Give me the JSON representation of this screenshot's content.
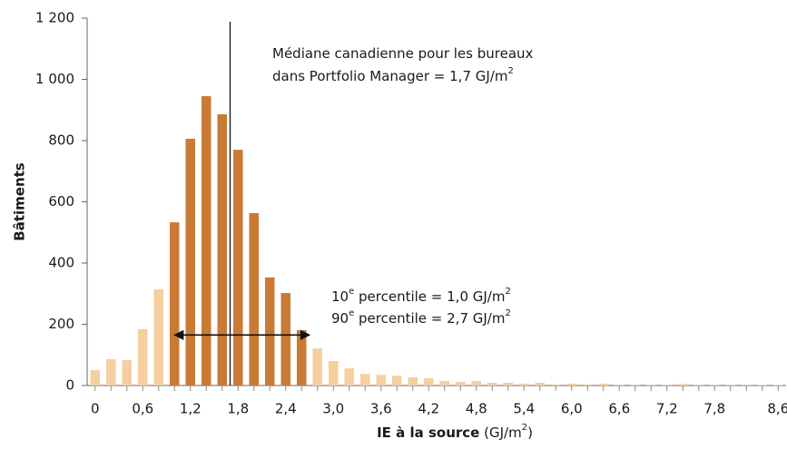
{
  "chart_data": {
    "type": "bar",
    "y_label": "Bâtiments",
    "x_label": [
      {
        "t": "IE à la source",
        "bold": true
      },
      {
        "t": " (GJ/m"
      },
      {
        "t": "2",
        "sup": true
      },
      {
        "t": ")"
      }
    ],
    "x": [
      0,
      0.2,
      0.4,
      0.6,
      0.8,
      1.0,
      1.2,
      1.4,
      1.6,
      1.8,
      2.0,
      2.2,
      2.4,
      2.6,
      2.8,
      3.0,
      3.2,
      3.4,
      3.6,
      3.8,
      4.0,
      4.2,
      4.4,
      4.6,
      4.8,
      5.0,
      5.2,
      5.4,
      5.6,
      5.8,
      6.0,
      6.2,
      6.4,
      6.6,
      6.8,
      7.0,
      7.2,
      7.4,
      7.6,
      7.8,
      8.0,
      8.2,
      8.4,
      8.6
    ],
    "values": [
      50,
      86,
      83,
      184,
      314,
      533,
      806,
      945,
      886,
      770,
      563,
      353,
      302,
      181,
      121,
      80,
      56,
      38,
      35,
      32,
      27,
      24,
      15,
      12,
      15,
      9,
      9,
      6,
      9,
      4,
      6,
      4,
      6,
      3,
      3,
      3,
      3,
      5,
      3,
      3,
      3,
      3,
      2,
      2
    ],
    "color": "#f5cfa0",
    "highlight_color": "#c97a35",
    "highlight_range": [
      1.0,
      2.6
    ],
    "xlim": [
      -0.1,
      8.7
    ],
    "xticks": [
      {
        "value": 0,
        "label": "0"
      },
      {
        "value": 0.6,
        "label": "0,6"
      },
      {
        "value": 1.2,
        "label": "1,2"
      },
      {
        "value": 1.8,
        "label": "1,8"
      },
      {
        "value": 2.4,
        "label": "2,4"
      },
      {
        "value": 3.0,
        "label": "3,0"
      },
      {
        "value": 3.6,
        "label": "3,6"
      },
      {
        "value": 4.2,
        "label": "4,2"
      },
      {
        "value": 4.8,
        "label": "4,8"
      },
      {
        "value": 5.4,
        "label": "5,4"
      },
      {
        "value": 6.0,
        "label": "6,0"
      },
      {
        "value": 6.6,
        "label": "6,6"
      },
      {
        "value": 7.2,
        "label": "7,2"
      },
      {
        "value": 7.8,
        "label": "7,8"
      },
      {
        "value": 8.6,
        "label": "8,6"
      }
    ],
    "ylim": [
      0,
      1200
    ],
    "yticks": [
      0,
      200,
      400,
      600,
      800,
      {
        "value": 1000,
        "label": "1 000"
      },
      {
        "value": 1200,
        "label": "1 200"
      }
    ],
    "median": 1.7,
    "median_label": [
      [
        {
          "t": "Médiane canadienne pour les bureaux"
        }
      ],
      [
        {
          "t": "dans Portfolio Manager = 1,7 GJ/m"
        },
        {
          "t": "2",
          "sup": true
        }
      ]
    ],
    "percentile_range": [
      1.0,
      2.7
    ],
    "arrow_y": 165,
    "percentile_label": [
      [
        {
          "t": "10"
        },
        {
          "t": "e",
          "sup": true
        },
        {
          "t": " percentile = 1,0 GJ/m"
        },
        {
          "t": "2",
          "sup": true
        }
      ],
      [
        {
          "t": "90"
        },
        {
          "t": "e",
          "sup": true
        },
        {
          "t": " percentile = 2,7 GJ/m"
        },
        {
          "t": "2",
          "sup": true
        }
      ]
    ]
  }
}
